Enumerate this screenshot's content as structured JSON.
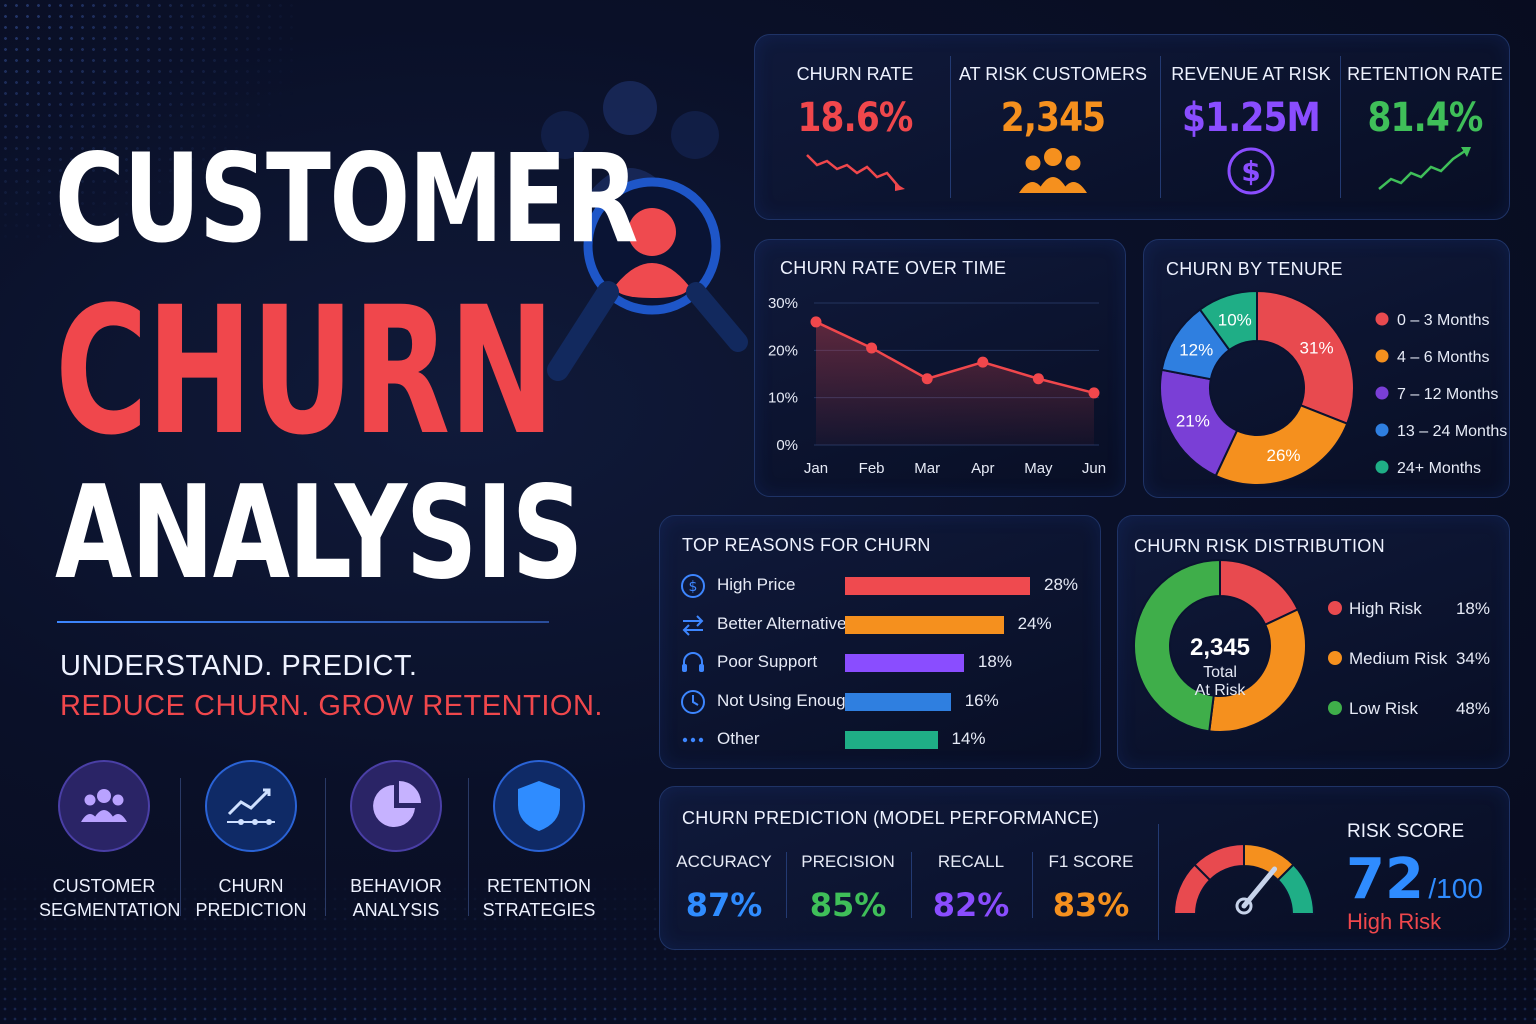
{
  "hero": {
    "title_line1": "CUSTOMER",
    "title_line2": "CHURN",
    "title_line3": "ANALYSIS",
    "tagline1": "UNDERSTAND. PREDICT.",
    "tagline2": "REDUCE CHURN. GROW RETENTION."
  },
  "features": [
    {
      "label": "CUSTOMER\nSEGMENTATION",
      "icon": "users-icon",
      "color": "#7b5ce6"
    },
    {
      "label": "CHURN\nPREDICTION",
      "icon": "trend-up-icon",
      "color": "#3d86ff"
    },
    {
      "label": "BEHAVIOR\nANALYSIS",
      "icon": "pie-icon",
      "color": "#8a63e8"
    },
    {
      "label": "RETENTION\nSTRATEGIES",
      "icon": "shield-icon",
      "color": "#2f8cff"
    }
  ],
  "kpis": [
    {
      "label": "CHURN RATE",
      "value": "18.6%",
      "color": "#f0474c",
      "icon": "trend-down-icon"
    },
    {
      "label": "AT RISK CUSTOMERS",
      "value": "2,345",
      "color": "#f5901e",
      "icon": "users-icon"
    },
    {
      "label": "REVENUE AT RISK",
      "value": "$1.25M",
      "color": "#8a4dff",
      "icon": "dollar-icon"
    },
    {
      "label": "RETENTION RATE",
      "value": "81.4%",
      "color": "#3fbf59",
      "icon": "trend-up-icon"
    }
  ],
  "panels": {
    "churn_over_time": "CHURN RATE OVER TIME",
    "churn_by_tenure": "CHURN BY TENURE",
    "top_reasons": "TOP REASONS FOR CHURN",
    "risk_distribution": "CHURN RISK DISTRIBUTION",
    "prediction": "CHURN PREDICTION (MODEL PERFORMANCE)"
  },
  "risk_center": {
    "value": "2,345",
    "line1": "Total",
    "line2": "At Risk"
  },
  "metrics": [
    {
      "label": "ACCURACY",
      "value": "87%",
      "color": "#2f8cff"
    },
    {
      "label": "PRECISION",
      "value": "85%",
      "color": "#3fbf59"
    },
    {
      "label": "RECALL",
      "value": "82%",
      "color": "#8a4dff"
    },
    {
      "label": "F1 SCORE",
      "value": "83%",
      "color": "#f5901e"
    }
  ],
  "risk_score": {
    "label": "RISK SCORE",
    "value": "72",
    "max": "/100",
    "status": "High Risk",
    "score": 72
  },
  "chart_data": [
    {
      "type": "area",
      "title": "CHURN RATE OVER TIME",
      "categories": [
        "Jan",
        "Feb",
        "Mar",
        "Apr",
        "May",
        "Jun"
      ],
      "values": [
        26,
        20.5,
        14,
        17.5,
        14,
        11
      ],
      "yticks": [
        "0%",
        "10%",
        "20%",
        "30%"
      ],
      "ylim": [
        0,
        30
      ],
      "color": "#f0474c"
    },
    {
      "type": "pie",
      "title": "CHURN BY TENURE",
      "labels": [
        "0 – 3 Months",
        "4 – 6 Months",
        "7 – 12 Months",
        "13 – 24 Months",
        "24+ Months"
      ],
      "values": [
        31,
        26,
        21,
        12,
        10
      ],
      "value_labels": [
        "31%",
        "26%",
        "21%",
        "12%",
        "10%"
      ],
      "colors": [
        "#e84a4f",
        "#f5901e",
        "#7a3fd6",
        "#2f7fe0",
        "#1fae86"
      ]
    },
    {
      "type": "bar",
      "title": "TOP REASONS FOR CHURN",
      "categories": [
        "High Price",
        "Better Alternatives",
        "Poor Support",
        "Not Using Enough",
        "Other"
      ],
      "values": [
        28,
        24,
        18,
        16,
        14
      ],
      "value_labels": [
        "28%",
        "24%",
        "18%",
        "16%",
        "14%"
      ],
      "icons": [
        "dollar-icon",
        "swap-icon",
        "headset-icon",
        "clock-icon",
        "dots-icon"
      ],
      "colors": [
        "#ef4a4f",
        "#f5901e",
        "#8a4dff",
        "#2f7fe0",
        "#1fae86"
      ]
    },
    {
      "type": "pie",
      "title": "CHURN RISK DISTRIBUTION",
      "labels": [
        "High Risk",
        "Medium Risk",
        "Low Risk"
      ],
      "values": [
        18,
        34,
        48
      ],
      "value_labels": [
        "18%",
        "34%",
        "48%"
      ],
      "colors": [
        "#e84a4f",
        "#f5901e",
        "#3fae4a"
      ]
    }
  ]
}
